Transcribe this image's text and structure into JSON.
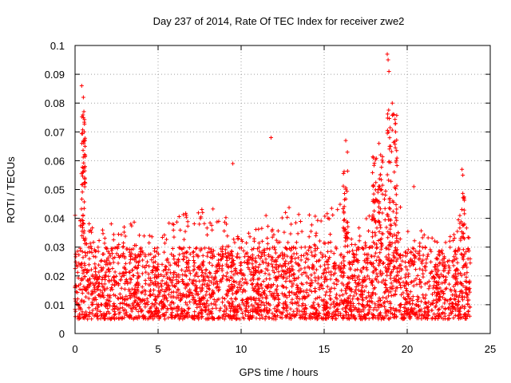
{
  "chart_data": {
    "type": "scatter",
    "title": "Day 237 of 2014, Rate Of TEC Index for receiver zwe2",
    "xlabel": "GPS time / hours",
    "ylabel": "ROTI / TECUs",
    "xlim": [
      0,
      25
    ],
    "ylim": [
      0,
      0.1
    ],
    "x_ticks": [
      0,
      5,
      10,
      15,
      20,
      25
    ],
    "y_ticks": [
      0,
      0.01,
      0.02,
      0.03,
      0.04,
      0.05,
      0.06,
      0.07,
      0.08,
      0.09,
      0.1
    ],
    "x_tick_labels": [
      "0",
      "5",
      "10",
      "15",
      "20",
      "25"
    ],
    "y_tick_labels": [
      "0",
      "0.01",
      "0.02",
      "0.03",
      "0.04",
      "0.05",
      "0.06",
      "0.07",
      "0.08",
      "0.09",
      "0.1"
    ],
    "grid": true,
    "marker": "+",
    "color": "#ff0000",
    "series": [
      {
        "name": "ROTI",
        "x_range": [
          0,
          23.8
        ],
        "baseline_band": [
          0.005,
          0.035
        ],
        "notable_points": [
          {
            "x": 0.4,
            "y": 0.086
          },
          {
            "x": 0.5,
            "y": 0.082
          },
          {
            "x": 0.5,
            "y": 0.075
          },
          {
            "x": 0.55,
            "y": 0.07
          },
          {
            "x": 0.6,
            "y": 0.065
          },
          {
            "x": 0.6,
            "y": 0.058
          },
          {
            "x": 9.5,
            "y": 0.059
          },
          {
            "x": 11.8,
            "y": 0.068
          },
          {
            "x": 16.3,
            "y": 0.067
          },
          {
            "x": 16.4,
            "y": 0.063
          },
          {
            "x": 18.3,
            "y": 0.066
          },
          {
            "x": 18.4,
            "y": 0.062
          },
          {
            "x": 18.8,
            "y": 0.097
          },
          {
            "x": 18.85,
            "y": 0.095
          },
          {
            "x": 18.9,
            "y": 0.091
          },
          {
            "x": 19.1,
            "y": 0.08
          },
          {
            "x": 19.2,
            "y": 0.076
          },
          {
            "x": 19.3,
            "y": 0.07
          },
          {
            "x": 19.0,
            "y": 0.065
          },
          {
            "x": 20.4,
            "y": 0.051
          },
          {
            "x": 23.3,
            "y": 0.057
          },
          {
            "x": 23.35,
            "y": 0.055
          }
        ]
      }
    ]
  }
}
